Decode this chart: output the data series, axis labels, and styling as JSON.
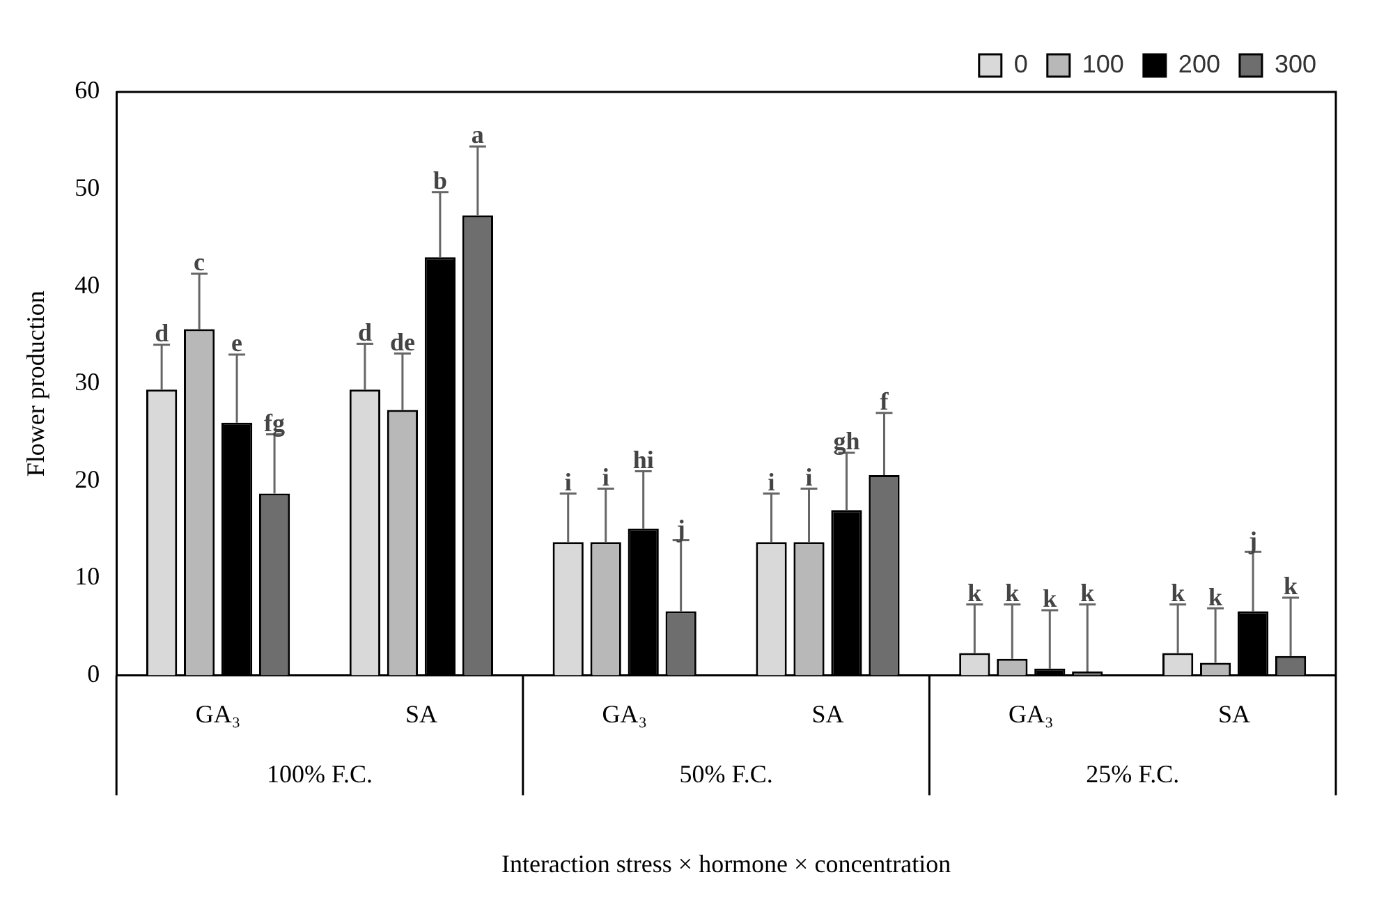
{
  "chart_data": {
    "type": "bar",
    "categories": [
      "GA₃",
      "SA",
      "GA₃",
      "SA",
      "GA₃",
      "SA"
    ],
    "xlabel": "Interaction stress × hormone × concentration",
    "ylabel": "Flower production",
    "ylim": [
      0,
      60
    ],
    "yticks": [
      0,
      10,
      20,
      30,
      40,
      50,
      60
    ],
    "grid": false,
    "legend": "top right",
    "annotations": [
      "100% F.C.",
      "50% F.C.",
      "25% F.C."
    ],
    "series": [
      {
        "name": "0",
        "color": "#d9d9d9",
        "values": [
          29.4,
          29.4,
          13.7,
          13.7,
          2.3,
          2.3
        ],
        "errors": [
          [
            29.4,
            34
          ],
          [
            29.4,
            34.1
          ],
          [
            13.7,
            18.7
          ],
          [
            13.7,
            18.7
          ],
          [
            2.3,
            7.3
          ],
          [
            2.3,
            7.3
          ]
        ],
        "value_labels": [
          "d",
          "d",
          "i",
          "i",
          "k",
          "k"
        ]
      },
      {
        "name": "100",
        "color": "#b8b8b8",
        "values": [
          35.6,
          27.3,
          13.7,
          13.7,
          1.7,
          1.3
        ],
        "errors": [
          [
            35.6,
            41.3
          ],
          [
            27.3,
            33.1
          ],
          [
            13.7,
            19.2
          ],
          [
            13.7,
            19.2
          ],
          [
            1.7,
            7.3
          ],
          [
            1.3,
            6.9
          ]
        ],
        "value_labels": [
          "c",
          "de",
          "i",
          "i",
          "k",
          "k"
        ]
      },
      {
        "name": "200",
        "color": "#000000",
        "values": [
          26.0,
          43.0,
          15.1,
          17.0,
          0.7,
          6.6
        ],
        "errors": [
          [
            26.0,
            33
          ],
          [
            43.0,
            49.7
          ],
          [
            15.1,
            21
          ],
          [
            17.0,
            22.9
          ],
          [
            0.7,
            6.7
          ],
          [
            6.6,
            12.7
          ]
        ],
        "value_labels": [
          "e",
          "b",
          "hi",
          "gh",
          "k",
          "j"
        ]
      },
      {
        "name": "300",
        "color": "#6e6e6e",
        "values": [
          18.7,
          47.3,
          6.6,
          20.6,
          0.4,
          2.0
        ],
        "errors": [
          [
            18.7,
            24.8
          ],
          [
            47.3,
            54.4
          ],
          [
            6.6,
            13.9
          ],
          [
            20.6,
            27
          ],
          [
            0.4,
            7.3
          ],
          [
            2.0,
            8
          ]
        ],
        "value_labels": [
          "fg",
          "a",
          "j",
          "f",
          "k",
          "k"
        ]
      }
    ]
  }
}
